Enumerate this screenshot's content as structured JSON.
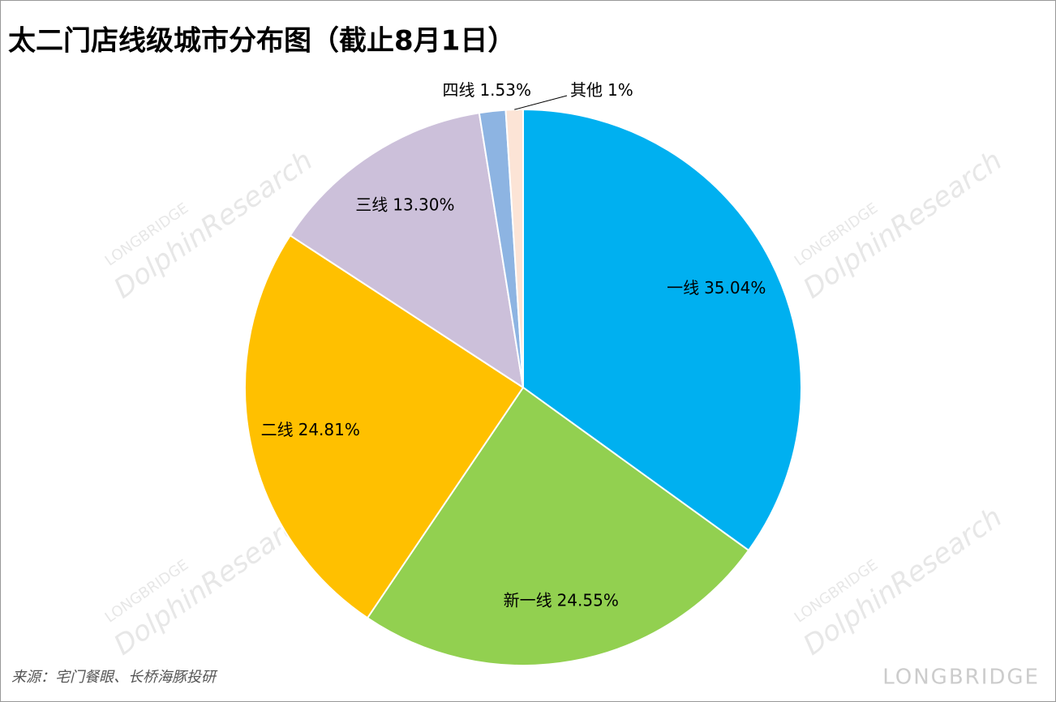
{
  "chart_data": {
    "type": "pie",
    "title": "太二门店线级城市分布图（截止8月1日）",
    "categories": [
      "一线",
      "新一线",
      "二线",
      "三线",
      "四线",
      "其他"
    ],
    "values": [
      35.04,
      24.55,
      24.81,
      13.3,
      1.53,
      1
    ],
    "value_labels": [
      "35.04%",
      "24.55%",
      "24.81%",
      "13.30%",
      "1.53%",
      "1%"
    ],
    "colors": [
      "#00b0f0",
      "#92d050",
      "#ffc000",
      "#ccc0da",
      "#8db4e2",
      "#fce4d6"
    ],
    "source": "来源：宅门餐眼、长桥海豚投研",
    "watermark": {
      "brand": "LONGBRIDGE",
      "name": "DolphinResearch"
    }
  }
}
